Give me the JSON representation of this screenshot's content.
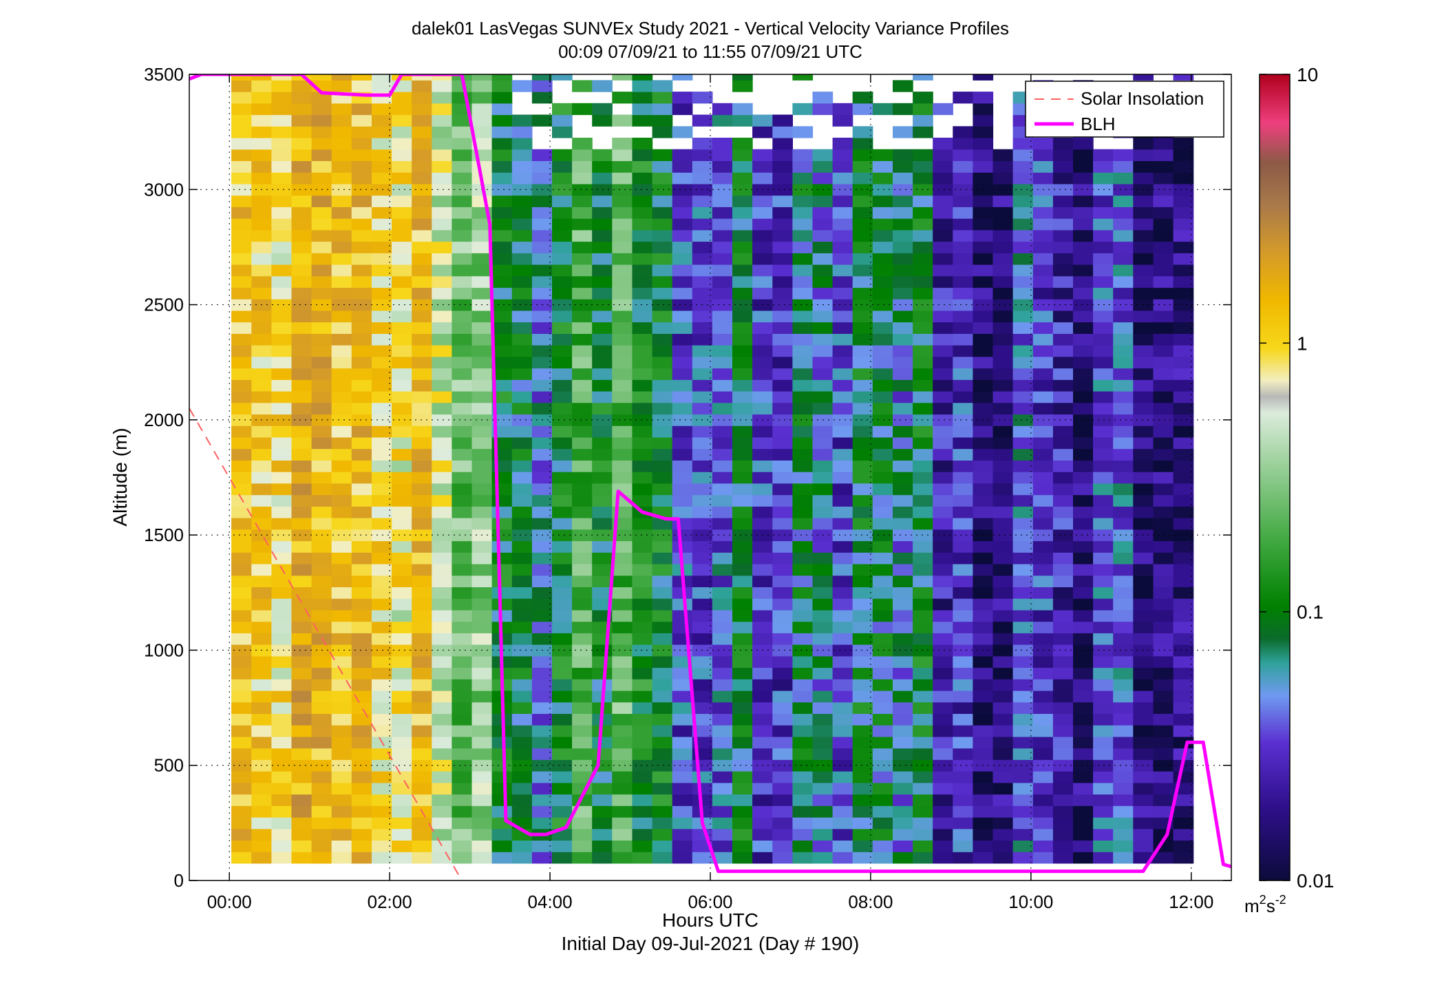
{
  "chart_data": {
    "type": "heatmap",
    "title_line1": "dalek01 LasVegas SUNVEx Study 2021 - Vertical Velocity Variance Profiles",
    "title_line2": "00:09 07/09/21 to 11:55 07/09/21  UTC",
    "xlabel": "Hours UTC",
    "xlabel2": "Initial Day 09-Jul-2021 (Day # 190)",
    "ylabel": "Altitude (m)",
    "xlim_hours": [
      -0.5,
      12.5
    ],
    "ylim": [
      0,
      3500
    ],
    "x_ticks": [
      {
        "value": 0,
        "label": "00:00"
      },
      {
        "value": 2,
        "label": "02:00"
      },
      {
        "value": 4,
        "label": "04:00"
      },
      {
        "value": 6,
        "label": "06:00"
      },
      {
        "value": 8,
        "label": "08:00"
      },
      {
        "value": 10,
        "label": "10:00"
      },
      {
        "value": 12,
        "label": "12:00"
      }
    ],
    "y_ticks": [
      {
        "value": 0,
        "label": "0"
      },
      {
        "value": 500,
        "label": "500"
      },
      {
        "value": 1000,
        "label": "1000"
      },
      {
        "value": 1500,
        "label": "1500"
      },
      {
        "value": 2000,
        "label": "2000"
      },
      {
        "value": 2500,
        "label": "2500"
      },
      {
        "value": 3000,
        "label": "3000"
      },
      {
        "value": 3500,
        "label": "3500"
      }
    ],
    "grid": true,
    "colorbar": {
      "scale": "log",
      "range": [
        0.01,
        10
      ],
      "ticks": [
        {
          "value": 10,
          "label": "10"
        },
        {
          "value": 1,
          "label": "1"
        },
        {
          "value": 0.1,
          "label": "0.1"
        },
        {
          "value": 0.01,
          "label": "0.01"
        }
      ],
      "unit_base": "m",
      "unit_sup1": "2",
      "unit_mid": "s",
      "unit_sup2": "-2"
    },
    "legend": {
      "placement": "top-right",
      "entries": [
        {
          "label": "Solar Insolation",
          "color": "#ff6060",
          "style": "dashed"
        },
        {
          "label": "BLH",
          "color": "#ff00ff",
          "style": "solid"
        }
      ]
    },
    "heatmap_grid": {
      "time_start_hours": 0.15,
      "time_step_hours": 0.25,
      "n_times": 48,
      "alt_start_m": 100,
      "alt_step_m": 50,
      "n_alts": 69,
      "value_units": "m^2 s^-2",
      "approx_log10_variance_by_time_segment": [
        {
          "from_hours": 0.15,
          "to_hours": 2.9,
          "log10_value": -0.05
        },
        {
          "from_hours": 2.9,
          "to_hours": 3.4,
          "log10_value": -0.7
        },
        {
          "from_hours": 3.4,
          "to_hours": 4.4,
          "log10_value": -1.1
        },
        {
          "from_hours": 4.4,
          "to_hours": 5.6,
          "log10_value": -0.9
        },
        {
          "from_hours": 5.6,
          "to_hours": 8.8,
          "log10_value": -1.3
        },
        {
          "from_hours": 8.8,
          "to_hours": 12.0,
          "log10_value": -1.6
        }
      ]
    },
    "blh_series": {
      "name": "BLH",
      "x_hours": [
        -0.5,
        -0.35,
        0.9,
        1.15,
        1.7,
        2.0,
        2.15,
        2.9,
        3.25,
        3.45,
        3.75,
        3.95,
        4.2,
        4.6,
        4.85,
        5.15,
        5.45,
        5.6,
        5.9,
        6.1,
        7.0,
        8.0,
        9.0,
        10.0,
        11.4,
        11.7,
        11.95,
        12.15,
        12.4,
        12.5
      ],
      "y_m": [
        3480,
        3500,
        3500,
        3420,
        3410,
        3410,
        3500,
        3500,
        2850,
        260,
        200,
        200,
        230,
        500,
        1690,
        1600,
        1570,
        1570,
        250,
        40,
        40,
        40,
        40,
        40,
        40,
        200,
        600,
        600,
        70,
        60
      ]
    },
    "solar_insolation_series": {
      "name": "Solar Insolation",
      "x_hours": [
        -0.5,
        2.9
      ],
      "y_m": [
        2050,
        0
      ]
    }
  }
}
